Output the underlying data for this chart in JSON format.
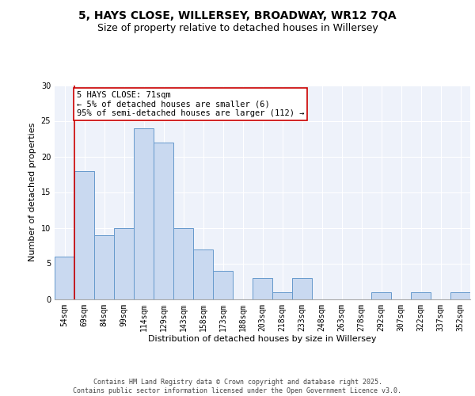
{
  "title_line1": "5, HAYS CLOSE, WILLERSEY, BROADWAY, WR12 7QA",
  "title_line2": "Size of property relative to detached houses in Willersey",
  "xlabel": "Distribution of detached houses by size in Willersey",
  "ylabel": "Number of detached properties",
  "bar_labels": [
    "54sqm",
    "69sqm",
    "84sqm",
    "99sqm",
    "114sqm",
    "129sqm",
    "143sqm",
    "158sqm",
    "173sqm",
    "188sqm",
    "203sqm",
    "218sqm",
    "233sqm",
    "248sqm",
    "263sqm",
    "278sqm",
    "292sqm",
    "307sqm",
    "322sqm",
    "337sqm",
    "352sqm"
  ],
  "bar_values": [
    6,
    18,
    9,
    10,
    24,
    22,
    10,
    7,
    4,
    0,
    3,
    1,
    3,
    0,
    0,
    0,
    1,
    0,
    1,
    0,
    1
  ],
  "bar_color": "#c9d9f0",
  "bar_edge_color": "#6699cc",
  "annotation_text": "5 HAYS CLOSE: 71sqm\n← 5% of detached houses are smaller (6)\n95% of semi-detached houses are larger (112) →",
  "annotation_box_color": "#ffffff",
  "annotation_border_color": "#cc0000",
  "vline_color": "#cc0000",
  "vline_x_index": 1,
  "ylim": [
    0,
    30
  ],
  "yticks": [
    0,
    5,
    10,
    15,
    20,
    25,
    30
  ],
  "background_color": "#eef2fa",
  "grid_color": "#ffffff",
  "footer_text": "Contains HM Land Registry data © Crown copyright and database right 2025.\nContains public sector information licensed under the Open Government Licence v3.0.",
  "title_fontsize": 10,
  "subtitle_fontsize": 9,
  "annotation_fontsize": 7.5,
  "tick_fontsize": 7,
  "label_fontsize": 8,
  "footer_fontsize": 6
}
